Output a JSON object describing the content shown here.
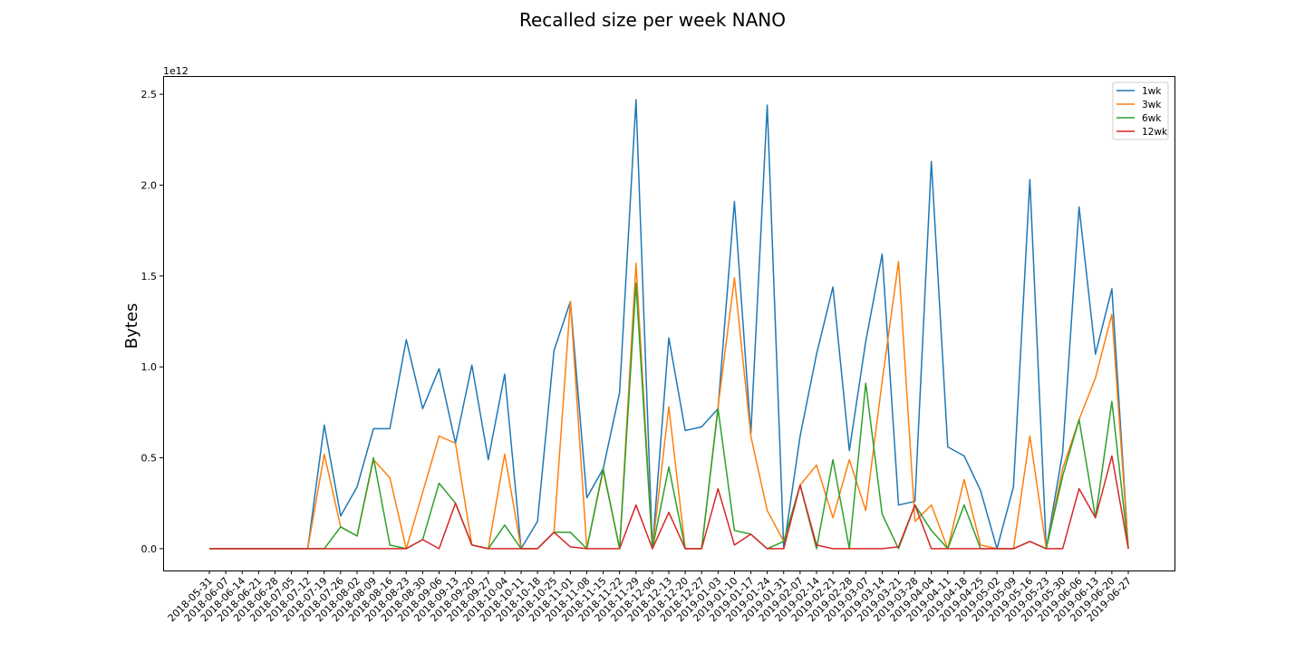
{
  "chart_data": {
    "type": "line",
    "title": "Recalled size per week NANO",
    "xlabel": "",
    "ylabel": "Bytes",
    "y_multiplier": "1e12",
    "y_scale": 1000000000000.0,
    "ylim": [
      -0.12,
      2.6
    ],
    "yticks": [
      0.0,
      0.5,
      1.0,
      1.5,
      2.0,
      2.5
    ],
    "ytick_labels": [
      "0.0",
      "0.5",
      "1.0",
      "1.5",
      "2.0",
      "2.5"
    ],
    "legend_position": "top-right",
    "grid": false,
    "categories": [
      "2018-05-31",
      "2018-06-07",
      "2018-06-14",
      "2018-06-21",
      "2018-06-28",
      "2018-07-05",
      "2018-07-12",
      "2018-07-19",
      "2018-07-26",
      "2018-08-02",
      "2018-08-09",
      "2018-08-16",
      "2018-08-23",
      "2018-08-30",
      "2018-09-06",
      "2018-09-13",
      "2018-09-20",
      "2018-09-27",
      "2018-10-04",
      "2018-10-11",
      "2018-10-18",
      "2018-10-25",
      "2018-11-01",
      "2018-11-08",
      "2018-11-15",
      "2018-11-22",
      "2018-11-29",
      "2018-12-06",
      "2018-12-13",
      "2018-12-20",
      "2018-12-27",
      "2019-01-03",
      "2019-01-10",
      "2019-01-17",
      "2019-01-24",
      "2019-01-31",
      "2019-02-07",
      "2019-02-14",
      "2019-02-21",
      "2019-02-28",
      "2019-03-07",
      "2019-03-14",
      "2019-03-21",
      "2019-03-28",
      "2019-04-04",
      "2019-04-11",
      "2019-04-18",
      "2019-04-25",
      "2019-05-02",
      "2019-05-09",
      "2019-05-16",
      "2019-05-23",
      "2019-05-30",
      "2019-06-06",
      "2019-06-13",
      "2019-06-20",
      "2019-06-27"
    ],
    "series": [
      {
        "name": "1wk",
        "color": "#1f77b4",
        "values": [
          0,
          0,
          0,
          0,
          0,
          0,
          0,
          0.68,
          0.18,
          0.34,
          0.66,
          0.66,
          1.15,
          0.77,
          0.99,
          0.58,
          1.01,
          0.49,
          0.96,
          0.0,
          0.15,
          1.09,
          1.36,
          0.28,
          0.44,
          0.86,
          2.47,
          0.0,
          1.16,
          0.65,
          0.67,
          0.77,
          1.91,
          0.63,
          2.44,
          0.0,
          0.62,
          1.07,
          1.44,
          0.54,
          1.14,
          1.62,
          0.24,
          0.26,
          2.13,
          0.56,
          0.51,
          0.32,
          0.0,
          0.34,
          2.03,
          0.0,
          0.53,
          1.88,
          1.07,
          1.43,
          0.0
        ]
      },
      {
        "name": "3wk",
        "color": "#ff7f0e",
        "values": [
          0,
          0,
          0,
          0,
          0,
          0,
          0,
          0.52,
          0.12,
          0.07,
          0.49,
          0.39,
          0.0,
          0.31,
          0.62,
          0.58,
          0.02,
          0.0,
          0.52,
          0.0,
          0.0,
          0.09,
          1.36,
          0.0,
          0.43,
          0.0,
          1.57,
          0.0,
          0.78,
          0.0,
          0.0,
          0.78,
          1.49,
          0.62,
          0.21,
          0.04,
          0.35,
          0.46,
          0.17,
          0.49,
          0.21,
          0.92,
          1.58,
          0.15,
          0.24,
          0.0,
          0.38,
          0.02,
          0.0,
          0.0,
          0.62,
          0.0,
          0.44,
          0.71,
          0.94,
          1.29,
          0.0
        ]
      },
      {
        "name": "6wk",
        "color": "#2ca02c",
        "values": [
          0,
          0,
          0,
          0,
          0,
          0,
          0,
          0.0,
          0.12,
          0.07,
          0.5,
          0.02,
          0.0,
          0.05,
          0.36,
          0.25,
          0.02,
          0.0,
          0.13,
          0.0,
          0.0,
          0.09,
          0.09,
          0.0,
          0.44,
          0.0,
          1.46,
          0.0,
          0.45,
          0.0,
          0.0,
          0.77,
          0.1,
          0.08,
          0.0,
          0.04,
          0.35,
          0.0,
          0.49,
          0.0,
          0.91,
          0.19,
          0.0,
          0.24,
          0.1,
          0.0,
          0.24,
          0.0,
          0.0,
          0.0,
          0.04,
          0.0,
          0.4,
          0.71,
          0.17,
          0.81,
          0.0
        ]
      },
      {
        "name": "12wk",
        "color": "#d62728",
        "values": [
          0,
          0,
          0,
          0,
          0,
          0,
          0,
          0.0,
          0.0,
          0.0,
          0.0,
          0.0,
          0.0,
          0.05,
          0.0,
          0.25,
          0.02,
          0.0,
          0.0,
          0.0,
          0.0,
          0.09,
          0.01,
          0.0,
          0.0,
          0.0,
          0.24,
          0.0,
          0.2,
          0.0,
          0.0,
          0.33,
          0.02,
          0.08,
          0.0,
          0.0,
          0.35,
          0.02,
          0.0,
          0.0,
          0.0,
          0.0,
          0.01,
          0.24,
          0.0,
          0.0,
          0.0,
          0.0,
          0.0,
          0.0,
          0.04,
          0.0,
          0.0,
          0.33,
          0.17,
          0.51,
          0.0
        ]
      }
    ]
  }
}
